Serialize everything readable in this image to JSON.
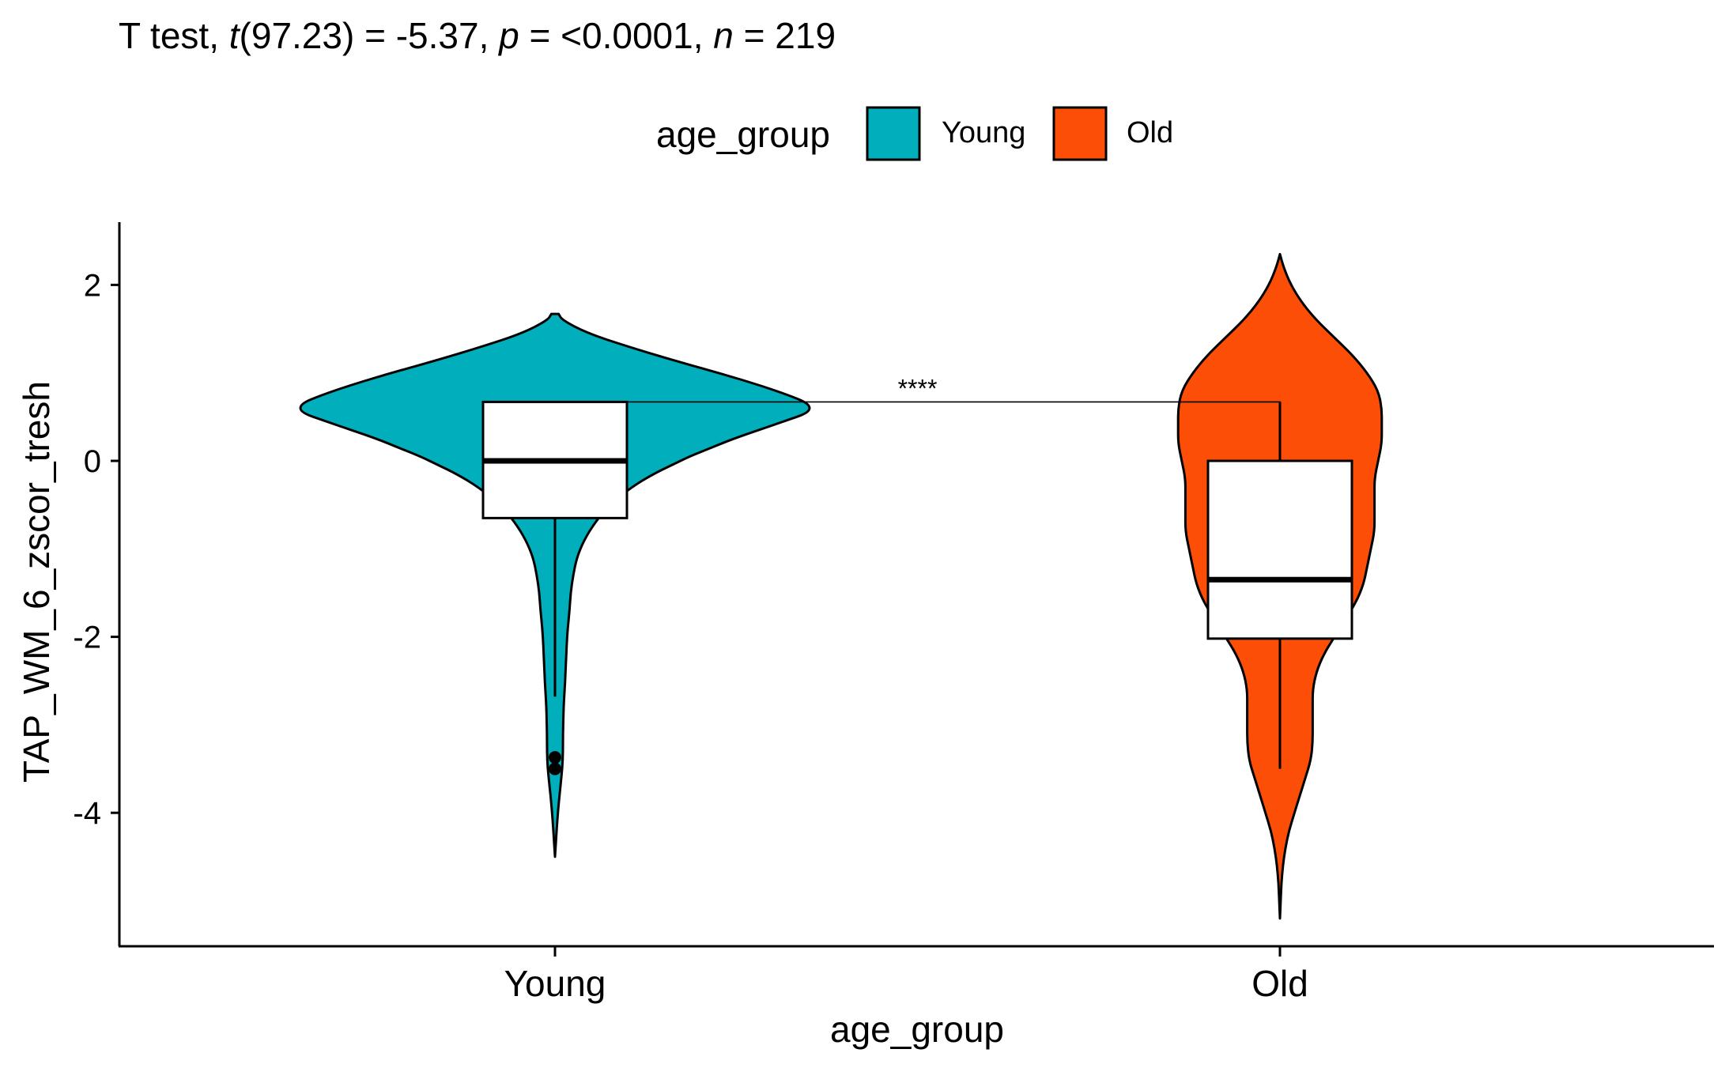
{
  "chart_data": {
    "type": "violin",
    "title_parts": {
      "prefix": "T test, ",
      "t_symbol": "t",
      "t_part": "(97.23) = -5.37, ",
      "p_symbol": "p",
      "p_part": " = <0.0001, ",
      "n_symbol": "n",
      "n_part": " = 219"
    },
    "xlabel": "age_group",
    "ylabel": "TAP_WM_6_zscor_tresh",
    "ylim": [
      -5.4,
      2.7
    ],
    "yticks": [
      2,
      0,
      -2,
      -4
    ],
    "ytick_labels": [
      "2",
      "0",
      "-2",
      "-4"
    ],
    "legend": {
      "title": "age_group",
      "position": "top",
      "entries": [
        {
          "label": "Young",
          "color": "#00AFBB"
        },
        {
          "label": "Old",
          "color": "#FC4E07"
        }
      ]
    },
    "categories": [
      "Young",
      "Old"
    ],
    "groups": [
      {
        "name": "Young",
        "color": "#00AFBB",
        "box": {
          "q1": -0.65,
          "median": 0.0,
          "q3": 0.67,
          "whisker_low": -2.68,
          "whisker_high": 0.67
        },
        "outliers": [
          -3.37,
          -3.5
        ],
        "density": [
          [
            1.67,
            0.01
          ],
          [
            1.6,
            0.02
          ],
          [
            1.45,
            0.09
          ],
          [
            1.3,
            0.2
          ],
          [
            1.15,
            0.32
          ],
          [
            1.0,
            0.45
          ],
          [
            0.85,
            0.57
          ],
          [
            0.75,
            0.64
          ],
          [
            0.65,
            0.7
          ],
          [
            0.55,
            0.7
          ],
          [
            0.45,
            0.63
          ],
          [
            0.35,
            0.56
          ],
          [
            0.25,
            0.49
          ],
          [
            0.15,
            0.43
          ],
          [
            0.05,
            0.37
          ],
          [
            -0.05,
            0.32
          ],
          [
            -0.15,
            0.27
          ],
          [
            -0.3,
            0.21
          ],
          [
            -0.5,
            0.15
          ],
          [
            -0.7,
            0.11
          ],
          [
            -0.9,
            0.08
          ],
          [
            -1.1,
            0.06
          ],
          [
            -1.3,
            0.05
          ],
          [
            -1.5,
            0.043
          ],
          [
            -1.7,
            0.04
          ],
          [
            -1.9,
            0.035
          ],
          [
            -2.1,
            0.032
          ],
          [
            -2.3,
            0.03
          ],
          [
            -2.5,
            0.028
          ],
          [
            -2.7,
            0.025
          ],
          [
            -2.9,
            0.023
          ],
          [
            -3.1,
            0.022
          ],
          [
            -3.3,
            0.022
          ],
          [
            -3.5,
            0.02
          ],
          [
            -3.7,
            0.015
          ],
          [
            -3.9,
            0.01
          ],
          [
            -4.1,
            0.006
          ],
          [
            -4.3,
            0.003
          ],
          [
            -4.5,
            0.0
          ]
        ]
      },
      {
        "name": "Old",
        "color": "#FC4E07",
        "box": {
          "q1": -2.02,
          "median": -1.35,
          "q3": 0.0,
          "whisker_low": -3.5,
          "whisker_high": 0.67
        },
        "outliers": [],
        "density": [
          [
            2.35,
            0.0
          ],
          [
            2.2,
            0.01
          ],
          [
            2.0,
            0.03
          ],
          [
            1.8,
            0.06
          ],
          [
            1.6,
            0.1
          ],
          [
            1.4,
            0.15
          ],
          [
            1.2,
            0.2
          ],
          [
            1.0,
            0.24
          ],
          [
            0.8,
            0.27
          ],
          [
            0.6,
            0.28
          ],
          [
            0.4,
            0.28
          ],
          [
            0.2,
            0.28
          ],
          [
            0.0,
            0.27
          ],
          [
            -0.2,
            0.26
          ],
          [
            -0.4,
            0.26
          ],
          [
            -0.6,
            0.26
          ],
          [
            -0.8,
            0.26
          ],
          [
            -1.0,
            0.25
          ],
          [
            -1.2,
            0.24
          ],
          [
            -1.4,
            0.23
          ],
          [
            -1.6,
            0.21
          ],
          [
            -1.8,
            0.18
          ],
          [
            -2.0,
            0.15
          ],
          [
            -2.2,
            0.12
          ],
          [
            -2.4,
            0.1
          ],
          [
            -2.6,
            0.09
          ],
          [
            -2.8,
            0.09
          ],
          [
            -3.0,
            0.09
          ],
          [
            -3.2,
            0.09
          ],
          [
            -3.4,
            0.085
          ],
          [
            -3.6,
            0.07
          ],
          [
            -3.8,
            0.055
          ],
          [
            -4.0,
            0.04
          ],
          [
            -4.2,
            0.025
          ],
          [
            -4.4,
            0.015
          ],
          [
            -4.6,
            0.008
          ],
          [
            -4.8,
            0.004
          ],
          [
            -5.0,
            0.002
          ],
          [
            -5.2,
            0.0
          ]
        ]
      }
    ],
    "comparison": {
      "label": "****",
      "y": 0.67,
      "from": "Young",
      "to": "Old"
    }
  }
}
